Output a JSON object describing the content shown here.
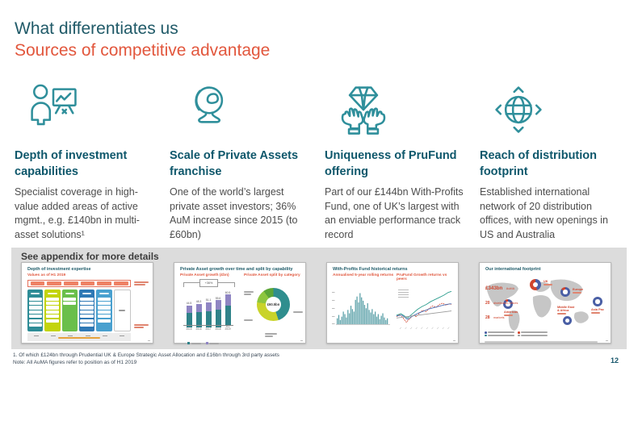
{
  "colors": {
    "accent_teal": "#2f8f9b",
    "heading_teal": "#0e576b",
    "title_teal": "#205a68",
    "orange": "#e2573d",
    "body_gray": "#4d4d4d",
    "band_gray": "#dcdcdc",
    "bar_teal": "#2f8289",
    "bar_purple": "#8f85c3",
    "map_blue": "#4a5fa5",
    "map_red": "#d0452e"
  },
  "slide": {
    "title": "What differentiates us",
    "subtitle": "Sources of competitive advantage",
    "page_number": "12"
  },
  "pillars": [
    {
      "icon": "presenter-chart-icon",
      "title": "Depth of investment capabilities",
      "body": "Specialist coverage in high-value added areas of active mgmt., e.g. £140bn in multi-asset solutions¹"
    },
    {
      "icon": "desk-globe-icon",
      "title": "Scale of Private Assets franchise",
      "body": "One of the world’s largest private asset investors; 36% AuM increase since 2015 (to £60bn)"
    },
    {
      "icon": "hands-diamond-icon",
      "title": "Uniqueness of PruFund offering",
      "body": "Part of our £144bn With-Profits Fund, one of UK’s largest with an enviable performance track record"
    },
    {
      "icon": "globe-arrows-icon",
      "title": "Reach of distribution footprint",
      "body": "Established international network of 20 distribution offices, with new openings in US and Australia"
    }
  ],
  "appendix": {
    "header": "See appendix for more details",
    "thumbnails": [
      {
        "title": "Depth of investment expertise",
        "subtitle": "Values as of H1 2019",
        "columns": [
          {
            "color": "#2e8c96",
            "rows": 7
          },
          {
            "color": "#c3d40e",
            "rows": 6
          },
          {
            "color": "#6abf4b",
            "rows": 2
          },
          {
            "color": "#2f79b5",
            "rows": 7
          },
          {
            "color": "#49a0cf",
            "rows": 6
          },
          {
            "color": "#ffffff",
            "rows": 0
          }
        ]
      },
      {
        "title": "Private Asset growth over time and split by capability",
        "left_subtitle": "Private Asset growth (£bn)",
        "right_subtitle": "Private Asset split by category",
        "growth_label": "+36%",
        "donut_center": "£60.5bn",
        "chart": {
          "type": "bar",
          "categories": [
            "2015",
            "2016",
            "2017",
            "2018",
            "H1 2019"
          ],
          "series": [
            {
              "name": "internal",
              "values": [
                29.5,
                31.8,
                33.5,
                36.2,
                39.0
              ]
            },
            {
              "name": "external",
              "values": [
                15.0,
                16.5,
                17.6,
                19.4,
                21.5
              ]
            }
          ],
          "totals": [
            44.5,
            48.3,
            51.1,
            55.6,
            60.5
          ]
        },
        "donut": {
          "type": "pie",
          "segments": [
            {
              "color": "#2f8e8e",
              "pct": 45
            },
            {
              "color": "#c9d32a",
              "pct": 32
            },
            {
              "color": "#8dc63f",
              "pct": 13
            },
            {
              "color": "#5ba637",
              "pct": 10
            }
          ]
        }
      },
      {
        "title": "With-Profits Fund historical returns",
        "left_subtitle": "Annualised 5-year rolling returns",
        "right_subtitle": "PruFund Growth returns vs peers",
        "bars": {
          "type": "bar",
          "values": [
            14,
            22,
            10,
            18,
            30,
            24,
            16,
            34,
            26,
            44,
            36,
            30,
            58,
            66,
            52,
            74,
            64,
            56,
            46,
            38,
            50,
            34,
            28,
            36,
            24,
            30,
            18,
            24,
            12,
            20,
            26,
            16,
            10,
            14
          ]
        },
        "lines": {
          "type": "line",
          "series": [
            {
              "name": "fund",
              "color": "#2e9e8f",
              "dash": false,
              "points": [
                [
                  0,
                  30
                ],
                [
                  8,
                  34
                ],
                [
                  14,
                  28
                ],
                [
                  20,
                  22
                ],
                [
                  26,
                  30
                ],
                [
                  32,
                  38
                ],
                [
                  38,
                  46
                ],
                [
                  46,
                  54
                ],
                [
                  54,
                  60
                ],
                [
                  62,
                  68
                ],
                [
                  70,
                  74
                ],
                [
                  78,
                  80
                ],
                [
                  86,
                  86
                ],
                [
                  94,
                  94
                ],
                [
                  100,
                  97
                ]
              ]
            },
            {
              "name": "benchmark",
              "color": "#d0452e",
              "dash": true,
              "points": [
                [
                  0,
                  26
                ],
                [
                  6,
                  32
                ],
                [
                  12,
                  22
                ],
                [
                  18,
                  10
                ],
                [
                  24,
                  20
                ],
                [
                  30,
                  30
                ],
                [
                  36,
                  26
                ],
                [
                  42,
                  36
                ],
                [
                  48,
                  44
                ],
                [
                  54,
                  40
                ],
                [
                  60,
                  50
                ],
                [
                  66,
                  56
                ],
                [
                  72,
                  52
                ],
                [
                  78,
                  60
                ],
                [
                  84,
                  64
                ],
                [
                  90,
                  58
                ],
                [
                  96,
                  62
                ],
                [
                  100,
                  60
                ]
              ]
            },
            {
              "name": "peer",
              "color": "#4a6fb5",
              "dash": false,
              "points": [
                [
                  0,
                  28
                ],
                [
                  10,
                  30
                ],
                [
                  20,
                  18
                ],
                [
                  30,
                  28
                ],
                [
                  40,
                  36
                ],
                [
                  50,
                  42
                ],
                [
                  60,
                  48
                ],
                [
                  70,
                  52
                ],
                [
                  80,
                  56
                ],
                [
                  90,
                  60
                ],
                [
                  100,
                  62
                ]
              ]
            },
            {
              "name": "cash",
              "color": "#9a9a9a",
              "dash": false,
              "points": [
                [
                  0,
                  22
                ],
                [
                  20,
                  26
                ],
                [
                  40,
                  30
                ],
                [
                  60,
                  34
                ],
                [
                  80,
                  38
                ],
                [
                  100,
                  42
                ]
              ]
            }
          ]
        }
      },
      {
        "title": "Our international footprint",
        "stats": [
          {
            "value": "£343bn",
            "label": "AuMA"
          },
          {
            "value": "20",
            "label": "distribution offices"
          },
          {
            "value": "28",
            "label": "markets"
          }
        ],
        "regions": [
          {
            "name": "UK",
            "split": 45
          },
          {
            "name": "Europe",
            "split": 85
          },
          {
            "name": "Asia Pac",
            "split": 100
          },
          {
            "name": "Middle East & Africa",
            "split": 100
          },
          {
            "name": "Americas",
            "split": 90
          }
        ]
      }
    ]
  },
  "footnotes": [
    "1. Of which £124bn through Prudential UK & Europe Strategic Asset Allocation and £16bn through 3rd party assets",
    "Note: All AuMA figures refer to position as of H1 2019"
  ]
}
